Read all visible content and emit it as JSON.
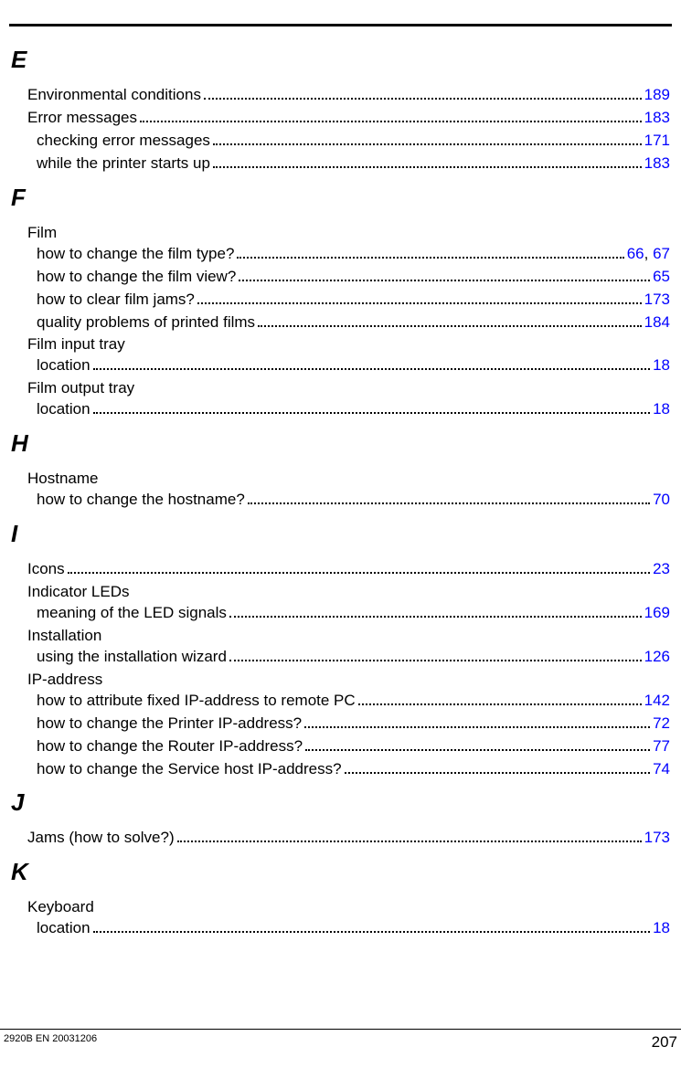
{
  "footer": {
    "doc_id": "2920B EN 20031206",
    "page_number": "207"
  },
  "link_color": "#0000ff",
  "sections": [
    {
      "letter": "E",
      "items": [
        {
          "type": "row",
          "indent": 0,
          "label": "Environmental conditions",
          "pages": [
            "189"
          ]
        },
        {
          "type": "row",
          "indent": 0,
          "label": "Error messages",
          "pages": [
            "183"
          ]
        },
        {
          "type": "row",
          "indent": 1,
          "label": "checking error messages",
          "pages": [
            "171"
          ]
        },
        {
          "type": "row",
          "indent": 1,
          "label": "while the printer starts up",
          "pages": [
            "183"
          ]
        }
      ]
    },
    {
      "letter": "F",
      "items": [
        {
          "type": "heading",
          "indent": 0,
          "label": "Film"
        },
        {
          "type": "row",
          "indent": 1,
          "label": "how to change the film type?",
          "pages": [
            "66",
            "67"
          ]
        },
        {
          "type": "row",
          "indent": 1,
          "label": "how to change the film view?",
          "pages": [
            "65"
          ]
        },
        {
          "type": "row",
          "indent": 1,
          "label": "how to clear film jams?",
          "pages": [
            "173"
          ]
        },
        {
          "type": "row",
          "indent": 1,
          "label": "quality problems of printed films",
          "pages": [
            "184"
          ]
        },
        {
          "type": "heading",
          "indent": 0,
          "label": "Film input tray"
        },
        {
          "type": "row",
          "indent": 1,
          "label": "location",
          "pages": [
            "18"
          ]
        },
        {
          "type": "heading",
          "indent": 0,
          "label": "Film output tray"
        },
        {
          "type": "row",
          "indent": 1,
          "label": "location",
          "pages": [
            "18"
          ]
        }
      ]
    },
    {
      "letter": "H",
      "items": [
        {
          "type": "heading",
          "indent": 0,
          "label": "Hostname"
        },
        {
          "type": "row",
          "indent": 1,
          "label": "how to change the hostname?",
          "pages": [
            "70"
          ]
        }
      ]
    },
    {
      "letter": "I",
      "items": [
        {
          "type": "row",
          "indent": 0,
          "label": "Icons",
          "pages": [
            "23"
          ]
        },
        {
          "type": "heading",
          "indent": 0,
          "label": "Indicator LEDs"
        },
        {
          "type": "row",
          "indent": 1,
          "label": "meaning of the LED signals",
          "pages": [
            "169"
          ]
        },
        {
          "type": "heading",
          "indent": 0,
          "label": "Installation"
        },
        {
          "type": "row",
          "indent": 1,
          "label": "using the installation wizard",
          "pages": [
            "126"
          ]
        },
        {
          "type": "heading",
          "indent": 0,
          "label": "IP-address"
        },
        {
          "type": "row",
          "indent": 1,
          "label": "how to attribute fixed IP-address to remote PC",
          "pages": [
            "142"
          ]
        },
        {
          "type": "row",
          "indent": 1,
          "label": "how to change the Printer IP-address?",
          "pages": [
            "72"
          ]
        },
        {
          "type": "row",
          "indent": 1,
          "label": "how to change the Router IP-address?",
          "pages": [
            "77"
          ]
        },
        {
          "type": "row",
          "indent": 1,
          "label": "how to change the Service host IP-address?",
          "pages": [
            "74"
          ]
        }
      ]
    },
    {
      "letter": "J",
      "items": [
        {
          "type": "row",
          "indent": 0,
          "label": "Jams (how to solve?)",
          "pages": [
            "173"
          ]
        }
      ]
    },
    {
      "letter": "K",
      "items": [
        {
          "type": "heading",
          "indent": 0,
          "label": "Keyboard"
        },
        {
          "type": "row",
          "indent": 1,
          "label": "location",
          "pages": [
            "18"
          ]
        }
      ]
    }
  ]
}
